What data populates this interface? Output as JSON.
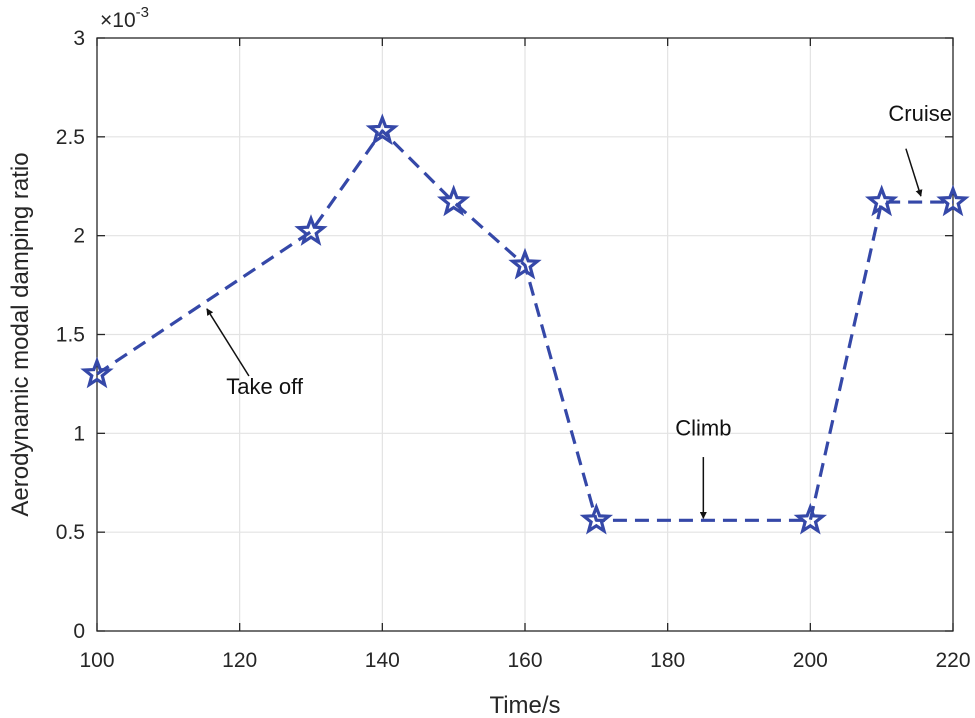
{
  "chart_data": {
    "type": "line",
    "title": "",
    "xlabel": "Time/s",
    "ylabel": "Aerodynamic modal damping ratio",
    "y_exponent_label": "×10",
    "y_exponent_power": "-3",
    "xlim": [
      100,
      220
    ],
    "ylim": [
      0,
      3
    ],
    "grid": true,
    "x_ticks": [
      100,
      120,
      140,
      160,
      180,
      200,
      220
    ],
    "x_tick_labels": [
      "100",
      "120",
      "140",
      "160",
      "180",
      "200",
      "220"
    ],
    "y_ticks": [
      0,
      0.5,
      1,
      1.5,
      2,
      2.5,
      3
    ],
    "y_tick_labels": [
      "0",
      "0.5",
      "1",
      "1.5",
      "2",
      "2.5",
      "3"
    ],
    "series": [
      {
        "name": "Aerodynamic modal damping ratio",
        "color": "#3548a8",
        "line_style": "dashed",
        "marker": "pentagram",
        "x": [
          100,
          130,
          140,
          150,
          160,
          170,
          200,
          210,
          220
        ],
        "y": [
          1.3,
          2.02,
          2.53,
          2.17,
          1.85,
          0.56,
          0.56,
          2.17,
          2.17
        ]
      }
    ],
    "annotations": [
      {
        "text": "Take off",
        "text_x": 123.5,
        "text_y": 1.2,
        "arrow_from": [
          121.3,
          1.29
        ],
        "arrow_to": [
          115.4,
          1.63
        ]
      },
      {
        "text": "Climb",
        "text_x": 185.0,
        "text_y": 0.99,
        "arrow_from": [
          185.0,
          0.88
        ],
        "arrow_to": [
          185.0,
          0.57
        ]
      },
      {
        "text": "Cruise",
        "text_x": 215.4,
        "text_y": 2.58,
        "arrow_from": [
          213.4,
          2.44
        ],
        "arrow_to": [
          215.5,
          2.2
        ]
      }
    ]
  }
}
